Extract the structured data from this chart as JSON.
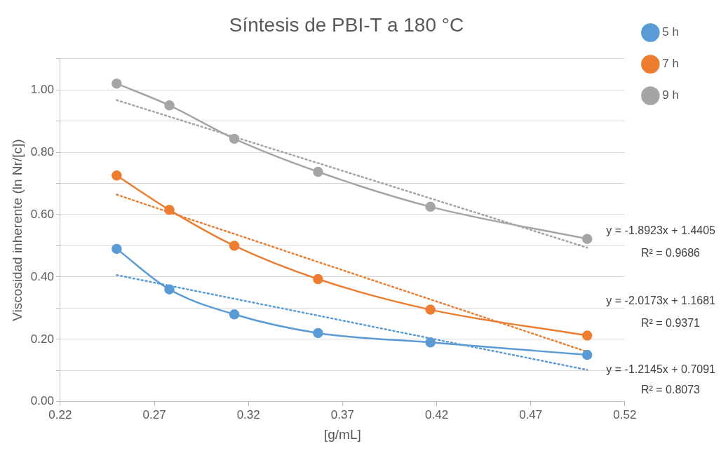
{
  "chart_data": {
    "type": "line",
    "title": "Síntesis de PBI-T a 180 °C",
    "xlabel": "[g/mL]",
    "ylabel": "Viscosidad inherente (ln Nr/[c])",
    "x": [
      0.25,
      0.278,
      0.3125,
      0.357,
      0.4167,
      0.5
    ],
    "series": [
      {
        "name": "5 h",
        "color": "#5b9bd5",
        "values": [
          0.49,
          0.36,
          0.28,
          0.22,
          0.19,
          0.15
        ],
        "marker": "circle"
      },
      {
        "name": "7 h",
        "color": "#ed7d31",
        "values": [
          0.725,
          0.615,
          0.5,
          0.393,
          0.295,
          0.212
        ],
        "marker": "circle"
      },
      {
        "name": "9 h",
        "color": "#a5a5a5",
        "values": [
          1.02,
          0.95,
          0.843,
          0.737,
          0.625,
          0.522
        ],
        "marker": "circle"
      },
      {
        "type": "line",
        "color": "#a5a5a5",
        "values": [
          0.967,
          0.914,
          0.849,
          0.765,
          0.652,
          0.494
        ],
        "marker": "none",
        "line_style": "dotted"
      },
      {
        "type": "line",
        "color": "#ed7d31",
        "values": [
          0.664,
          0.607,
          0.538,
          0.448,
          0.328,
          0.16
        ],
        "marker": "none",
        "line_style": "dotted"
      },
      {
        "type": "line",
        "color": "#5b9bd5",
        "values": [
          0.406,
          0.372,
          0.33,
          0.276,
          0.203,
          0.102
        ],
        "marker": "none",
        "line_style": "dotted"
      }
    ],
    "xlim": [
      0.22,
      0.52
    ],
    "xticks": [
      0.22,
      0.27,
      0.32,
      0.37,
      0.42,
      0.47,
      0.52
    ],
    "ylim": [
      0,
      1.1
    ],
    "yticks": [
      {
        "value": 0,
        "label": "0.00"
      },
      {
        "value": 0.1,
        "label": null
      },
      {
        "value": 0.2,
        "label": "0.20"
      },
      {
        "value": 0.3,
        "label": null
      },
      {
        "value": 0.4,
        "label": "0.40"
      },
      {
        "value": 0.5,
        "label": null
      },
      {
        "value": 0.6,
        "label": "0.60"
      },
      {
        "value": 0.7,
        "label": null
      },
      {
        "value": 0.8,
        "label": "0.80"
      },
      {
        "value": 0.9,
        "label": null
      },
      {
        "value": 1,
        "label": "1.00"
      },
      {
        "value": 1.1,
        "label": null
      }
    ],
    "grid": "y",
    "legend": "right",
    "annotations": [
      "y = -1.8923x + 1.4405",
      "R² = 0.9686",
      "y = -2.0173x + 1.1681",
      "R² = 0.9371",
      "y = -1.2145x + 0.7091",
      "R² = 0.8073"
    ]
  }
}
